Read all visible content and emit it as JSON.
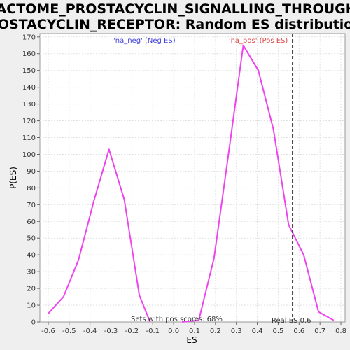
{
  "chart_data": {
    "type": "line",
    "title_lines": [
      "REACTOME_PROSTACYCLIN_SIGNALLING_THROUGH_P",
      "ROSTACYCLIN_RECEPTOR: Random ES distribution"
    ],
    "xlabel": "ES",
    "ylabel": "P(ES)",
    "xlim": [
      -0.64,
      0.82
    ],
    "ylim": [
      0,
      172
    ],
    "x_ticks": [
      -0.6,
      -0.5,
      -0.4,
      -0.3,
      -0.2,
      -0.1,
      0.0,
      0.1,
      0.2,
      0.3,
      0.4,
      0.5,
      0.6,
      0.7,
      0.8
    ],
    "x_tick_labels": [
      "-0.6",
      "-0.5",
      "-0.4",
      "-0.3",
      "-0.2",
      "-0.1",
      "0.0",
      "0.1",
      "0.2",
      "0.3",
      "0.4",
      "0.5",
      "0.6",
      "0.7",
      "0.8"
    ],
    "y_ticks": [
      0,
      10,
      20,
      30,
      40,
      50,
      60,
      70,
      80,
      90,
      100,
      110,
      120,
      130,
      140,
      150,
      160,
      170
    ],
    "grid": true,
    "series": [
      {
        "name": "'na_neg' (Neg ES)",
        "label_color": "#4444dd",
        "color": "#ee44ee",
        "x": [
          -0.6,
          -0.527,
          -0.455,
          -0.382,
          -0.309,
          -0.236,
          -0.164,
          -0.113
        ],
        "y": [
          5,
          15,
          37,
          72,
          103,
          73,
          16,
          0
        ]
      },
      {
        "name": "'na_pos' (Pos ES)",
        "label_color": "#dd4444",
        "color": "#ee44ee",
        "x": [
          0.04,
          0.12,
          0.193,
          0.262,
          0.333,
          0.405,
          0.477,
          0.55,
          0.622,
          0.693,
          0.766
        ],
        "y": [
          0,
          1,
          38,
          100,
          165,
          150,
          115,
          58,
          40,
          6,
          1
        ]
      }
    ],
    "real_es": {
      "value": 0.569,
      "label": "Real ES 0.6"
    },
    "annotation": "Sets with pos scores: 68%"
  }
}
